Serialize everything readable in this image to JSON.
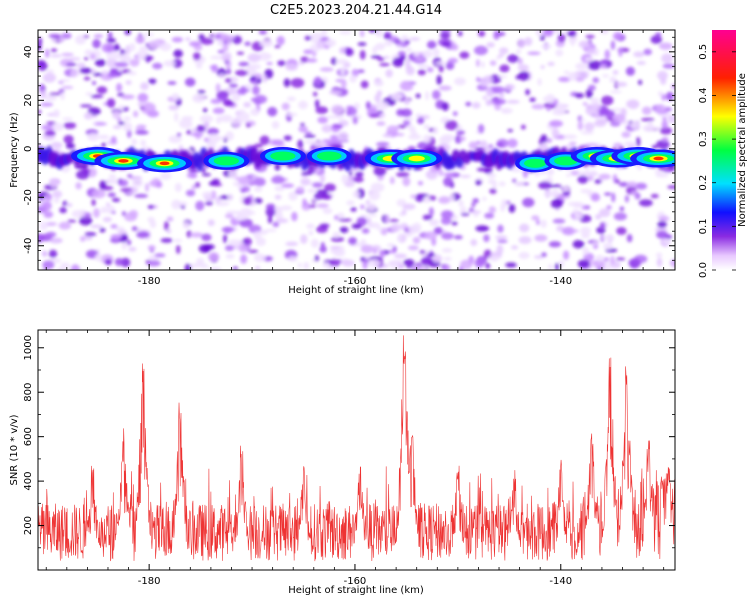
{
  "title": "C2E5.2023.204.21.44.G14",
  "chart_data": [
    {
      "type": "heatmap",
      "xlabel": "Height of straight line (km)",
      "ylabel": "Frequency (Hz)",
      "xlim": [
        -190.8,
        -128.9
      ],
      "ylim": [
        -50,
        49
      ],
      "x_ticks": [
        "-180",
        "-160",
        "-140"
      ],
      "x_tick_values": [
        -180,
        -160,
        -140
      ],
      "y_ticks": [
        "-40",
        "-20",
        "0",
        "20",
        "40"
      ],
      "y_tick_values": [
        -40,
        -20,
        0,
        20,
        40
      ],
      "colorbar": {
        "label": "Normalized spectral amplitude",
        "range": [
          0.0,
          0.55
        ],
        "ticks": [
          "0.0",
          "0.1",
          "0.2",
          "0.3",
          "0.4",
          "0.5"
        ],
        "tick_values": [
          0.0,
          0.1,
          0.2,
          0.3,
          0.4,
          0.5
        ],
        "colormap": "rainbow (white-violet-blue-cyan-green-yellow-red-magenta)"
      },
      "bright_band_frequency_hz": -4,
      "hot_spots": [
        {
          "x": -185.0,
          "y": -3,
          "level": 0.42
        },
        {
          "x": -182.5,
          "y": -5,
          "level": 0.5
        },
        {
          "x": -178.5,
          "y": -6,
          "level": 0.45
        },
        {
          "x": -172.5,
          "y": -5,
          "level": 0.3
        },
        {
          "x": -167.0,
          "y": -3,
          "level": 0.3
        },
        {
          "x": -162.5,
          "y": -3,
          "level": 0.28
        },
        {
          "x": -156.5,
          "y": -4,
          "level": 0.4
        },
        {
          "x": -154.0,
          "y": -4,
          "level": 0.38
        },
        {
          "x": -142.5,
          "y": -6,
          "level": 0.2
        },
        {
          "x": -139.5,
          "y": -5,
          "level": 0.25
        },
        {
          "x": -136.5,
          "y": -3,
          "level": 0.4
        },
        {
          "x": -134.5,
          "y": -4,
          "level": 0.45
        },
        {
          "x": -132.5,
          "y": -3,
          "level": 0.42
        },
        {
          "x": -130.5,
          "y": -4,
          "level": 0.48
        }
      ]
    },
    {
      "type": "line",
      "xlabel": "Height of straight line (km)",
      "ylabel": "SNR (10 * v/v)",
      "xlim": [
        -190.8,
        -128.9
      ],
      "ylim": [
        0,
        1080
      ],
      "x_ticks": [
        "-180",
        "-160",
        "-140"
      ],
      "x_tick_values": [
        -180,
        -160,
        -140
      ],
      "y_ticks": [
        "200",
        "400",
        "600",
        "800",
        "1000"
      ],
      "y_tick_values": [
        200,
        400,
        600,
        800,
        1000
      ],
      "line_color": "#ee3333",
      "grid": false,
      "peaks": [
        {
          "x": -185.5,
          "y": 480
        },
        {
          "x": -182.5,
          "y": 640
        },
        {
          "x": -180.6,
          "y": 930
        },
        {
          "x": -177.0,
          "y": 760
        },
        {
          "x": -171.0,
          "y": 580
        },
        {
          "x": -165.0,
          "y": 490
        },
        {
          "x": -159.5,
          "y": 500
        },
        {
          "x": -155.2,
          "y": 1080
        },
        {
          "x": -154.5,
          "y": 650
        },
        {
          "x": -150.0,
          "y": 470
        },
        {
          "x": -144.5,
          "y": 460
        },
        {
          "x": -140.0,
          "y": 500
        },
        {
          "x": -137.0,
          "y": 640
        },
        {
          "x": -135.2,
          "y": 980
        },
        {
          "x": -133.6,
          "y": 920
        },
        {
          "x": -131.5,
          "y": 600
        },
        {
          "x": -129.5,
          "y": 470
        }
      ]
    }
  ]
}
